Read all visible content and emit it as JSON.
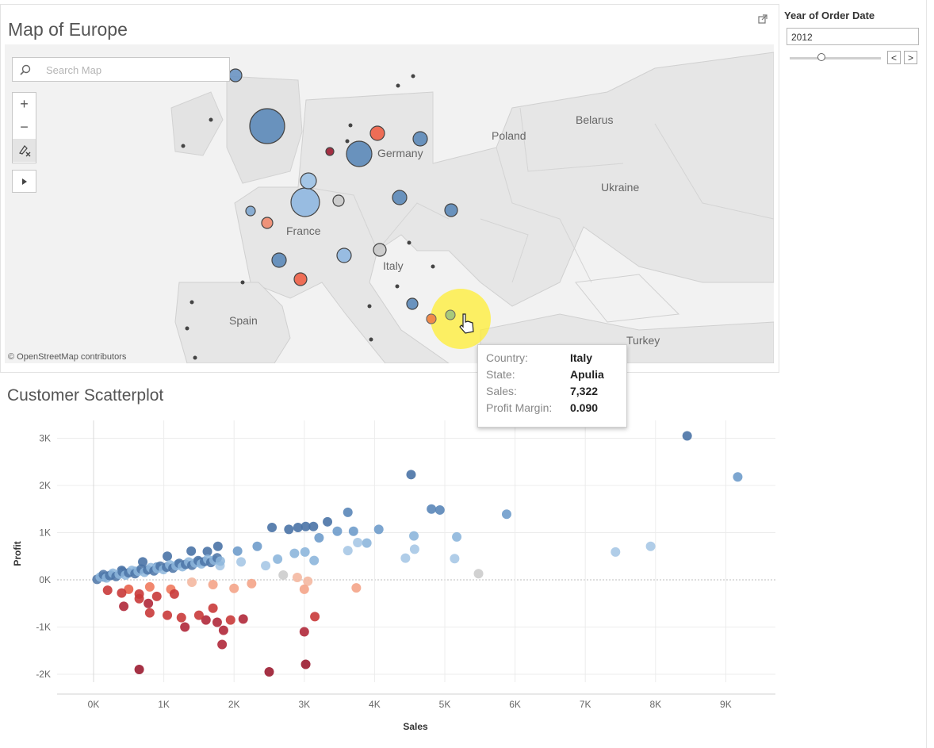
{
  "map": {
    "title": "Map of Europe",
    "search_placeholder": "Search Map",
    "zoom_in": "+",
    "zoom_out": "−",
    "attribution": "© OpenStreetMap contributors",
    "country_labels": [
      "Poland",
      "Belarus",
      "Ukraine",
      "Germany",
      "France",
      "Italy",
      "Spain",
      "Turkey"
    ],
    "marks": [
      {
        "r": 22,
        "color": "#5b88b8"
      },
      {
        "r": 8,
        "color": "#6a94c2"
      },
      {
        "r": 18,
        "color": "#8fb7e0"
      },
      {
        "r": 16,
        "color": "#5b88b8"
      },
      {
        "r": 10,
        "color": "#9cc2e6"
      },
      {
        "r": 9,
        "color": "#5b88b8"
      },
      {
        "r": 9,
        "color": "#ee5f46"
      },
      {
        "r": 8,
        "color": "#ee5f46"
      },
      {
        "r": 9,
        "color": "#5b88b8"
      },
      {
        "r": 8,
        "color": "#5b88b8"
      },
      {
        "r": 9,
        "color": "#8fb7e0"
      },
      {
        "r": 9,
        "color": "#5b88b8"
      },
      {
        "r": 7,
        "color": "#c9c9c9"
      },
      {
        "r": 8,
        "color": "#c9c9c9"
      },
      {
        "r": 7,
        "color": "#5b88b8"
      },
      {
        "r": 7,
        "color": "#f08a6e"
      },
      {
        "r": 6,
        "color": "#7ea6cf"
      },
      {
        "r": 5,
        "color": "#9b1b30"
      },
      {
        "r": 6,
        "color": "#a8c97a"
      },
      {
        "r": 6,
        "color": "#f08a4a"
      }
    ]
  },
  "filter": {
    "title": "Year of Order Date",
    "value": "2012",
    "prev_label": "<",
    "next_label": ">"
  },
  "tooltip": {
    "rows": [
      {
        "key": "Country:",
        "value": "Italy"
      },
      {
        "key": "State:",
        "value": "Apulia"
      },
      {
        "key": "Sales:",
        "value": "7,322"
      },
      {
        "key": "Profit Margin:",
        "value": "0.090"
      }
    ]
  },
  "scatter": {
    "title": "Customer Scatterplot"
  },
  "chart_data": {
    "type": "scatter",
    "title": "Customer Scatterplot",
    "xlabel": "Sales",
    "ylabel": "Profit",
    "xlim": [
      -500,
      9500
    ],
    "ylim": [
      -2300,
      3200
    ],
    "x_ticks": [
      "0K",
      "1K",
      "2K",
      "3K",
      "4K",
      "5K",
      "6K",
      "7K",
      "8K",
      "9K"
    ],
    "y_ticks": [
      "3K",
      "2K",
      "1K",
      "0K",
      "-1K",
      "-2K"
    ],
    "x_tick_values": [
      0,
      1000,
      2000,
      3000,
      4000,
      5000,
      6000,
      7000,
      8000,
      9000
    ],
    "y_tick_values": [
      3000,
      2000,
      1000,
      0,
      -1000,
      -2000
    ],
    "grid": true,
    "points": [
      {
        "x": 8450,
        "y": 3050,
        "c": "#4a73a6"
      },
      {
        "x": 9170,
        "y": 2180,
        "c": "#6f9ccb"
      },
      {
        "x": 4520,
        "y": 2230,
        "c": "#4a73a6"
      },
      {
        "x": 4810,
        "y": 1500,
        "c": "#5a86b8"
      },
      {
        "x": 4930,
        "y": 1480,
        "c": "#5a86b8"
      },
      {
        "x": 5880,
        "y": 1390,
        "c": "#6f9ccb"
      },
      {
        "x": 3620,
        "y": 1430,
        "c": "#5a86b8"
      },
      {
        "x": 7930,
        "y": 710,
        "c": "#a7c8e5"
      },
      {
        "x": 7430,
        "y": 590,
        "c": "#a7c8e5"
      },
      {
        "x": 5480,
        "y": 130,
        "c": "#cccccc"
      },
      {
        "x": 5170,
        "y": 910,
        "c": "#8db6dc"
      },
      {
        "x": 5140,
        "y": 450,
        "c": "#a7c8e5"
      },
      {
        "x": 4560,
        "y": 930,
        "c": "#8db6dc"
      },
      {
        "x": 4570,
        "y": 650,
        "c": "#a7c8e5"
      },
      {
        "x": 4440,
        "y": 460,
        "c": "#a7c8e5"
      },
      {
        "x": 4060,
        "y": 1070,
        "c": "#6f9ccb"
      },
      {
        "x": 3890,
        "y": 780,
        "c": "#8db6dc"
      },
      {
        "x": 3760,
        "y": 790,
        "c": "#a7c8e5"
      },
      {
        "x": 3700,
        "y": 1030,
        "c": "#6f9ccb"
      },
      {
        "x": 3470,
        "y": 1030,
        "c": "#6f9ccb"
      },
      {
        "x": 3330,
        "y": 1230,
        "c": "#4a73a6"
      },
      {
        "x": 3620,
        "y": 620,
        "c": "#a7c8e5"
      },
      {
        "x": 3210,
        "y": 890,
        "c": "#6f9ccb"
      },
      {
        "x": 3130,
        "y": 1130,
        "c": "#4a73a6"
      },
      {
        "x": 3020,
        "y": 1130,
        "c": "#4a73a6"
      },
      {
        "x": 2910,
        "y": 1110,
        "c": "#4a73a6"
      },
      {
        "x": 2780,
        "y": 1070,
        "c": "#4a73a6"
      },
      {
        "x": 2540,
        "y": 1110,
        "c": "#4a73a6"
      },
      {
        "x": 3140,
        "y": 410,
        "c": "#8db6dc"
      },
      {
        "x": 3010,
        "y": 590,
        "c": "#8db6dc"
      },
      {
        "x": 2860,
        "y": 560,
        "c": "#8db6dc"
      },
      {
        "x": 2620,
        "y": 440,
        "c": "#8db6dc"
      },
      {
        "x": 2330,
        "y": 710,
        "c": "#6f9ccb"
      },
      {
        "x": 2050,
        "y": 610,
        "c": "#6f9ccb"
      },
      {
        "x": 1770,
        "y": 710,
        "c": "#4a73a6"
      },
      {
        "x": 1620,
        "y": 600,
        "c": "#4a73a6"
      },
      {
        "x": 1390,
        "y": 610,
        "c": "#4a73a6"
      },
      {
        "x": 1050,
        "y": 500,
        "c": "#4a73a6"
      },
      {
        "x": 700,
        "y": 380,
        "c": "#4a73a6"
      },
      {
        "x": 400,
        "y": 200,
        "c": "#4a73a6"
      },
      {
        "x": 150,
        "y": 60,
        "c": "#4a73a6"
      },
      {
        "x": 250,
        "y": 100,
        "c": "#6f9ccb"
      },
      {
        "x": 600,
        "y": 180,
        "c": "#8db6dc"
      },
      {
        "x": 900,
        "y": 270,
        "c": "#6f9ccb"
      },
      {
        "x": 1200,
        "y": 330,
        "c": "#8db6dc"
      },
      {
        "x": 1500,
        "y": 380,
        "c": "#6f9ccb"
      },
      {
        "x": 1800,
        "y": 300,
        "c": "#a7c8e5"
      },
      {
        "x": 2100,
        "y": 380,
        "c": "#a7c8e5"
      },
      {
        "x": 2450,
        "y": 300,
        "c": "#a7c8e5"
      },
      {
        "x": 2700,
        "y": 100,
        "c": "#cccccc"
      },
      {
        "x": 2900,
        "y": 50,
        "c": "#f4b8a1"
      },
      {
        "x": 3050,
        "y": -30,
        "c": "#f4b8a1"
      },
      {
        "x": 3000,
        "y": -200,
        "c": "#f4a488"
      },
      {
        "x": 3740,
        "y": -170,
        "c": "#f4a488"
      },
      {
        "x": 2250,
        "y": -80,
        "c": "#f4a488"
      },
      {
        "x": 2000,
        "y": -180,
        "c": "#f4a488"
      },
      {
        "x": 1700,
        "y": -100,
        "c": "#f4a488"
      },
      {
        "x": 1400,
        "y": -50,
        "c": "#f4b8a1"
      },
      {
        "x": 1100,
        "y": -200,
        "c": "#ef7a5e"
      },
      {
        "x": 800,
        "y": -150,
        "c": "#ef7a5e"
      },
      {
        "x": 500,
        "y": -200,
        "c": "#e8604a"
      },
      {
        "x": 200,
        "y": -220,
        "c": "#c93a3a"
      },
      {
        "x": 400,
        "y": -280,
        "c": "#c93a3a"
      },
      {
        "x": 650,
        "y": -400,
        "c": "#c93a3a"
      },
      {
        "x": 900,
        "y": -350,
        "c": "#c93a3a"
      },
      {
        "x": 1150,
        "y": -300,
        "c": "#c93a3a"
      },
      {
        "x": 1700,
        "y": -600,
        "c": "#c93a3a"
      },
      {
        "x": 1950,
        "y": -850,
        "c": "#c93a3a"
      },
      {
        "x": 1250,
        "y": -800,
        "c": "#c93a3a"
      },
      {
        "x": 1050,
        "y": -750,
        "c": "#c93a3a"
      },
      {
        "x": 800,
        "y": -700,
        "c": "#c93a3a"
      },
      {
        "x": 650,
        "y": -300,
        "c": "#c93a3a"
      },
      {
        "x": 430,
        "y": -560,
        "c": "#b0283a"
      },
      {
        "x": 1300,
        "y": -1000,
        "c": "#b0283a"
      },
      {
        "x": 1600,
        "y": -850,
        "c": "#b0283a"
      },
      {
        "x": 1760,
        "y": -900,
        "c": "#b0283a"
      },
      {
        "x": 1850,
        "y": -1070,
        "c": "#b0283a"
      },
      {
        "x": 2130,
        "y": -830,
        "c": "#b0283a"
      },
      {
        "x": 1830,
        "y": -1370,
        "c": "#b0283a"
      },
      {
        "x": 3150,
        "y": -780,
        "c": "#c93a3a"
      },
      {
        "x": 3000,
        "y": -1100,
        "c": "#b0283a"
      },
      {
        "x": 3020,
        "y": -1790,
        "c": "#9b1b30"
      },
      {
        "x": 2500,
        "y": -1950,
        "c": "#9b1b30"
      },
      {
        "x": 650,
        "y": -1900,
        "c": "#9b1b30"
      },
      {
        "x": 780,
        "y": -500,
        "c": "#b0283a"
      },
      {
        "x": 1500,
        "y": -750,
        "c": "#c93a3a"
      }
    ]
  }
}
